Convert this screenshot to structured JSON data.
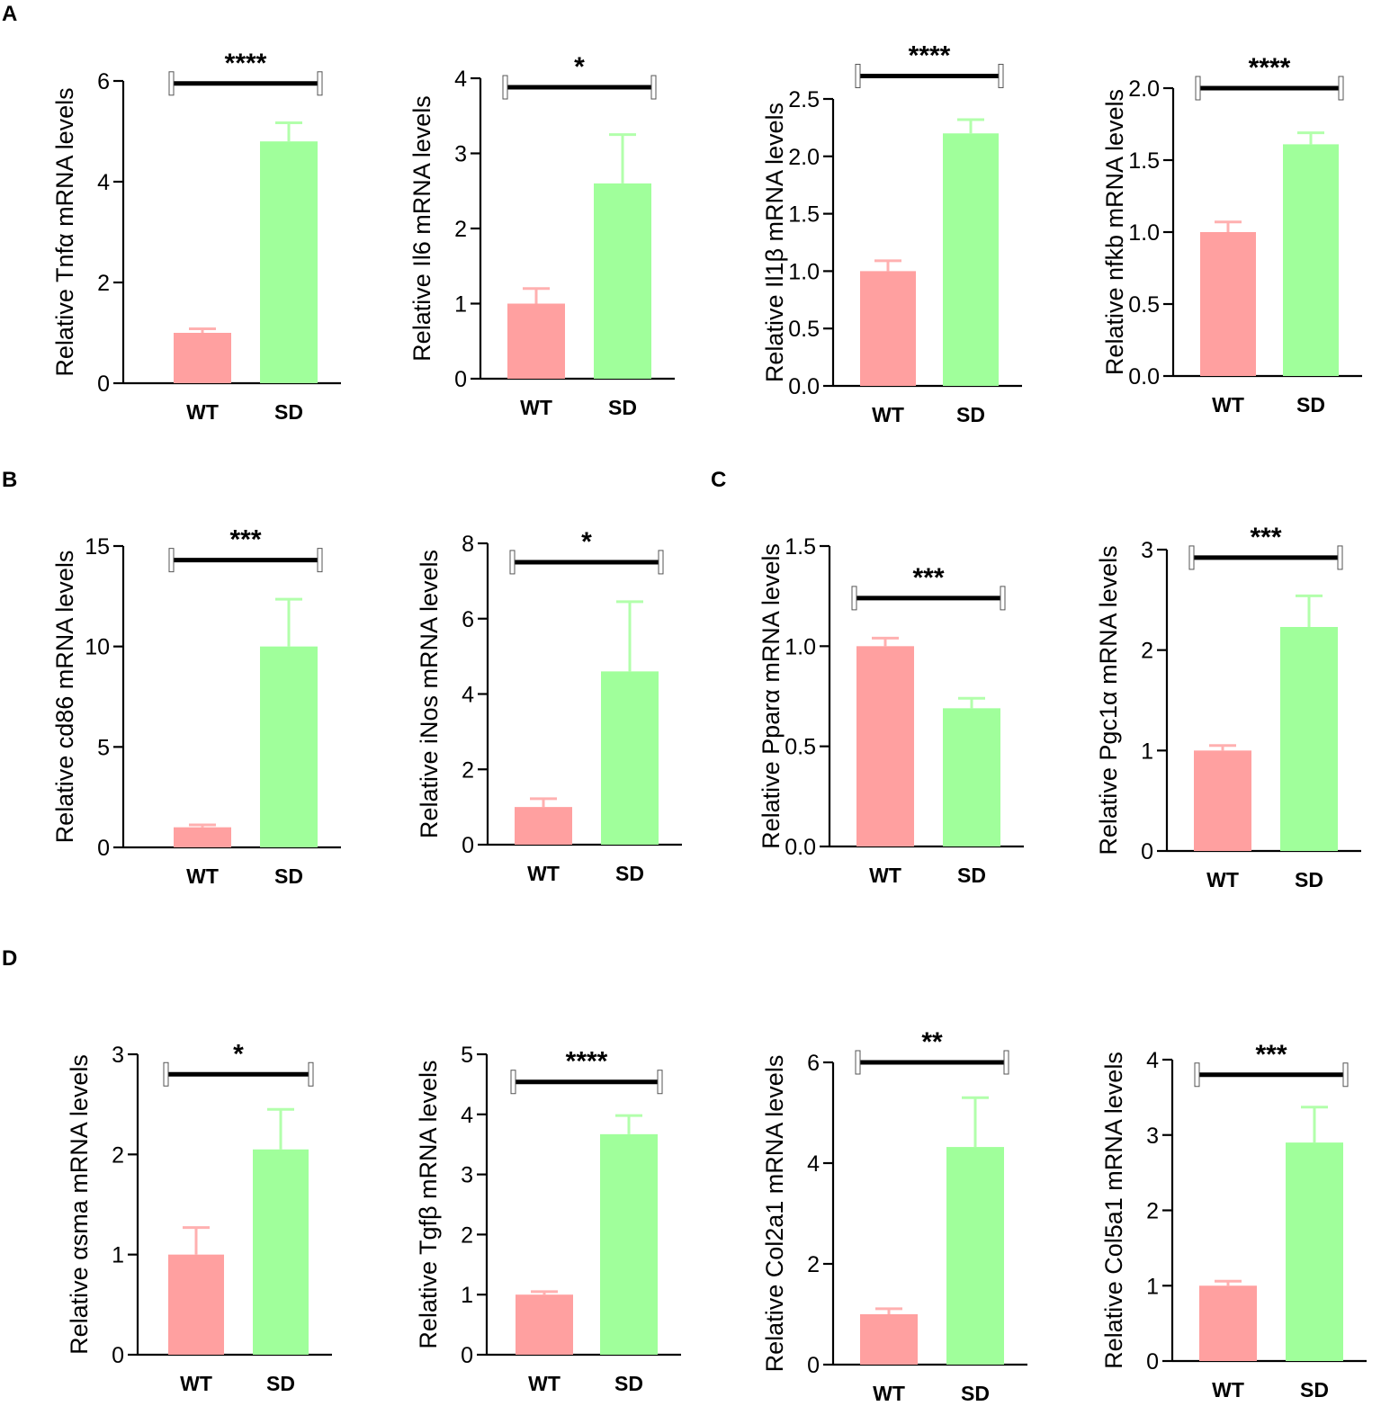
{
  "panel_labels": [
    "A",
    "B",
    "C",
    "D"
  ],
  "colors": {
    "WT": "#ffa0a0",
    "SD": "#a0ff9b",
    "WT_err": "#ffb0b0",
    "SD_err": "#b2ffab",
    "axis": "#000000"
  },
  "chart_data": [
    {
      "type": "bar",
      "panel": "A",
      "categories": [
        "WT",
        "SD"
      ],
      "values": [
        1.0,
        4.8
      ],
      "errors": [
        0.08,
        0.37
      ],
      "ylabel": "Relative Tnfα mRNA levels",
      "ylim": [
        0,
        6
      ],
      "yticks": [
        0,
        2,
        4,
        6
      ],
      "ytick_labels": [
        "0",
        "2",
        "4",
        "6"
      ],
      "significance": "****",
      "sig_level": 5.95
    },
    {
      "type": "bar",
      "panel": "A",
      "categories": [
        "WT",
        "SD"
      ],
      "values": [
        1.0,
        2.6
      ],
      "errors": [
        0.2,
        0.65
      ],
      "ylabel": "Relative Il6 mRNA levels",
      "ylim": [
        0,
        4
      ],
      "yticks": [
        0,
        1,
        2,
        3,
        4
      ],
      "ytick_labels": [
        "0",
        "1",
        "2",
        "3",
        "4"
      ],
      "significance": "*",
      "sig_level": 3.88
    },
    {
      "type": "bar",
      "panel": "A",
      "categories": [
        "WT",
        "SD"
      ],
      "values": [
        1.0,
        2.2
      ],
      "errors": [
        0.09,
        0.12
      ],
      "ylabel": "Relative Il1β mRNA levels",
      "ylim": [
        0,
        2.5
      ],
      "yticks": [
        0,
        0.5,
        1,
        1.5,
        2,
        2.5
      ],
      "ytick_labels": [
        "0.0",
        "0.5",
        "1.0",
        "1.5",
        "2.0",
        "2.5"
      ],
      "significance": "****",
      "sig_level": 2.7
    },
    {
      "type": "bar",
      "panel": "A",
      "categories": [
        "WT",
        "SD"
      ],
      "values": [
        1.0,
        1.61
      ],
      "errors": [
        0.07,
        0.08
      ],
      "ylabel": "Relative nfkb mRNA levels",
      "ylim": [
        0,
        2
      ],
      "yticks": [
        0,
        0.5,
        1,
        1.5,
        2
      ],
      "ytick_labels": [
        "0.0",
        "0.5",
        "1.0",
        "1.5",
        "2.0"
      ],
      "significance": "****",
      "sig_level": 2.0
    },
    {
      "type": "bar",
      "panel": "B",
      "categories": [
        "WT",
        "SD"
      ],
      "values": [
        1.0,
        10.0
      ],
      "errors": [
        0.12,
        2.35
      ],
      "ylabel": "Relative cd86 mRNA levels",
      "ylim": [
        0,
        15
      ],
      "yticks": [
        0,
        5,
        10,
        15
      ],
      "ytick_labels": [
        "0",
        "5",
        "10",
        "15"
      ],
      "significance": "***",
      "sig_level": 14.3
    },
    {
      "type": "bar",
      "panel": "B",
      "categories": [
        "WT",
        "SD"
      ],
      "values": [
        1.0,
        4.6
      ],
      "errors": [
        0.22,
        1.85
      ],
      "ylabel": "Relative iNos mRNA levels",
      "ylim": [
        0,
        8
      ],
      "yticks": [
        0,
        2,
        4,
        6,
        8
      ],
      "ytick_labels": [
        "0",
        "2",
        "4",
        "6",
        "8"
      ],
      "significance": "*",
      "sig_level": 7.5
    },
    {
      "type": "bar",
      "panel": "C",
      "categories": [
        "WT",
        "SD"
      ],
      "values": [
        1.0,
        0.69
      ],
      "errors": [
        0.04,
        0.05
      ],
      "ylabel": "Relative Pparα mRNA levels",
      "ylim": [
        0,
        1.5
      ],
      "yticks": [
        0,
        0.5,
        1,
        1.5
      ],
      "ytick_labels": [
        "0.0",
        "0.5",
        "1.0",
        "1.5"
      ],
      "significance": "***",
      "sig_level": 1.24
    },
    {
      "type": "bar",
      "panel": "C",
      "categories": [
        "WT",
        "SD"
      ],
      "values": [
        1.0,
        2.23
      ],
      "errors": [
        0.05,
        0.31
      ],
      "ylabel": "Relative Pgc1α mRNA levels",
      "ylim": [
        0,
        3
      ],
      "yticks": [
        0,
        1,
        2,
        3
      ],
      "ytick_labels": [
        "0",
        "1",
        "2",
        "3"
      ],
      "significance": "***",
      "sig_level": 2.92
    },
    {
      "type": "bar",
      "panel": "D",
      "categories": [
        "WT",
        "SD"
      ],
      "values": [
        1.0,
        2.05
      ],
      "errors": [
        0.27,
        0.4
      ],
      "ylabel": "Relative αsma mRNA levels",
      "ylim": [
        0,
        3
      ],
      "yticks": [
        0,
        1,
        2,
        3
      ],
      "ytick_labels": [
        "0",
        "1",
        "2",
        "3"
      ],
      "significance": "*",
      "sig_level": 2.8
    },
    {
      "type": "bar",
      "panel": "D",
      "categories": [
        "WT",
        "SD"
      ],
      "values": [
        1.0,
        3.67
      ],
      "errors": [
        0.05,
        0.31
      ],
      "ylabel": "Relative Tgfβ mRNA levels",
      "ylim": [
        0,
        5
      ],
      "yticks": [
        0,
        1,
        2,
        3,
        4,
        5
      ],
      "ytick_labels": [
        "0",
        "1",
        "2",
        "3",
        "4",
        "5"
      ],
      "significance": "****",
      "sig_level": 4.54
    },
    {
      "type": "bar",
      "panel": "D",
      "categories": [
        "WT",
        "SD"
      ],
      "values": [
        1.0,
        4.32
      ],
      "errors": [
        0.11,
        0.98
      ],
      "ylabel": "Relative Col2a1 mRNA levels",
      "ylim": [
        0,
        6
      ],
      "yticks": [
        0,
        2,
        4,
        6
      ],
      "ytick_labels": [
        "0",
        "2",
        "4",
        "6"
      ],
      "significance": "**",
      "sig_level": 6.0
    },
    {
      "type": "bar",
      "panel": "D",
      "categories": [
        "WT",
        "SD"
      ],
      "values": [
        1.0,
        2.9
      ],
      "errors": [
        0.06,
        0.47
      ],
      "ylabel": "Relative Col5a1 mRNA levels",
      "ylim": [
        0,
        4
      ],
      "yticks": [
        0,
        1,
        2,
        3,
        4
      ],
      "ytick_labels": [
        "0",
        "1",
        "2",
        "3",
        "4"
      ],
      "significance": "***",
      "sig_level": 3.8
    }
  ]
}
